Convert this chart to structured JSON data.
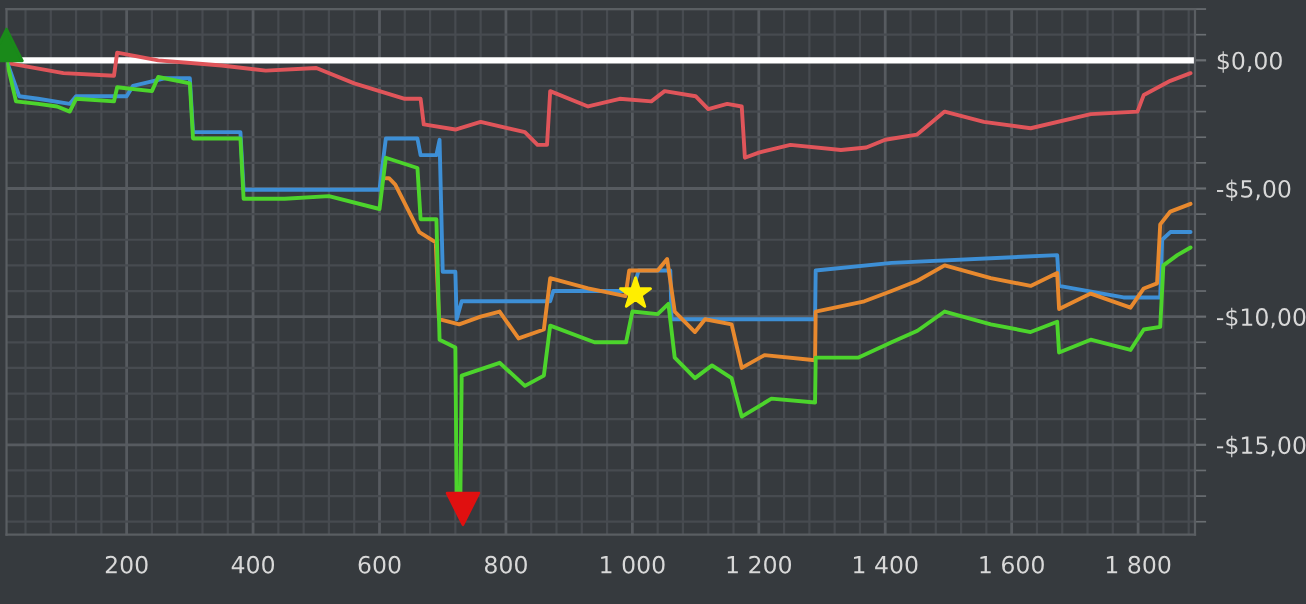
{
  "chart_data": {
    "type": "line",
    "xlim": [
      10,
      1890
    ],
    "ylim": [
      -18.5,
      2
    ],
    "xticks": [
      200,
      400,
      600,
      800,
      {
        "value": 1000,
        "label": "1 000"
      },
      {
        "value": 1200,
        "label": "1 200"
      },
      {
        "value": 1400,
        "label": "1 400"
      },
      {
        "value": 1600,
        "label": "1 600"
      },
      {
        "value": 1800,
        "label": "1 800"
      }
    ],
    "yticks": [
      {
        "value": 0,
        "label": "$0,00"
      },
      {
        "value": -5,
        "label": "-$5,00"
      },
      {
        "value": -10,
        "label": "-$10,00"
      },
      {
        "value": -15,
        "label": "-$15,00"
      }
    ],
    "grid": true,
    "legend": false,
    "line_style": "solid",
    "ref_lines": [
      {
        "axis": "y",
        "value": 0,
        "color": "#ffffff"
      }
    ],
    "series": [
      {
        "color": "#e0555a",
        "x": [
          10,
          100,
          180,
          185,
          250,
          350,
          420,
          500,
          560,
          640,
          665,
          670,
          720,
          760,
          830,
          850,
          865,
          870,
          930,
          980,
          1030,
          1051,
          1100,
          1120,
          1150,
          1173,
          1178,
          1200,
          1250,
          1330,
          1370,
          1400,
          1450,
          1494,
          1556,
          1630,
          1725,
          1799,
          1809,
          1851,
          1883
        ],
        "values": [
          -0.1,
          -0.5,
          -0.6,
          0.3,
          0.0,
          -0.2,
          -0.4,
          -0.3,
          -0.9,
          -1.5,
          -1.5,
          -2.5,
          -2.7,
          -2.4,
          -2.8,
          -3.3,
          -3.3,
          -1.2,
          -1.8,
          -1.5,
          -1.6,
          -1.2,
          -1.4,
          -1.9,
          -1.7,
          -1.8,
          -3.8,
          -3.6,
          -3.3,
          -3.5,
          -3.4,
          -3.1,
          -2.9,
          -2.0,
          -2.4,
          -2.65,
          -2.1,
          -2.0,
          -1.35,
          -0.8,
          -0.5
        ]
      },
      {
        "color": "#3d8fd6",
        "x": [
          10,
          30,
          60,
          110,
          120,
          200,
          210,
          260,
          300,
          305,
          380,
          385,
          600,
          610,
          660,
          665,
          690,
          695,
          700,
          720,
          722,
          730,
          870,
          875,
          1000,
          1010,
          1060,
          1062,
          1289,
          1290,
          1410,
          1672,
          1675,
          1777,
          1835,
          1838,
          1851,
          1883
        ],
        "values": [
          0.0,
          -1.4,
          -1.5,
          -1.7,
          -1.4,
          -1.4,
          -1.0,
          -0.7,
          -0.7,
          -2.8,
          -2.8,
          -5.05,
          -5.05,
          -3.05,
          -3.05,
          -3.7,
          -3.7,
          -3.1,
          -8.25,
          -8.25,
          -10.1,
          -9.4,
          -9.4,
          -9.0,
          -9.0,
          -8.2,
          -8.2,
          -10.1,
          -10.1,
          -8.2,
          -7.9,
          -7.6,
          -8.8,
          -9.25,
          -9.25,
          -7.0,
          -6.7,
          -6.7
        ]
      },
      {
        "color": "#e8892e",
        "x": [
          610,
          615,
          625,
          663,
          689,
          694,
          726,
          760,
          790,
          820,
          860,
          870,
          930,
          989,
          995,
          1040,
          1055,
          1067,
          1099,
          1115,
          1157,
          1173,
          1209,
          1289,
          1290,
          1367,
          1410,
          1451,
          1494,
          1567,
          1630,
          1672,
          1675,
          1725,
          1788,
          1809,
          1830,
          1835,
          1851,
          1883
        ],
        "values": [
          -4.6,
          -4.6,
          -4.85,
          -6.7,
          -7.1,
          -10.1,
          -10.3,
          -10.0,
          -9.8,
          -10.85,
          -10.5,
          -8.5,
          -8.9,
          -9.2,
          -8.2,
          -8.2,
          -7.75,
          -9.8,
          -10.6,
          -10.1,
          -10.3,
          -12.0,
          -11.5,
          -11.7,
          -9.8,
          -9.4,
          -9.0,
          -8.6,
          -8.0,
          -8.5,
          -8.8,
          -8.3,
          -9.7,
          -9.1,
          -9.65,
          -8.9,
          -8.7,
          -6.4,
          -5.9,
          -5.6
        ]
      },
      {
        "color": "#4cd42c",
        "x": [
          10,
          25,
          60,
          90,
          110,
          120,
          180,
          185,
          240,
          250,
          300,
          305,
          380,
          385,
          450,
          520,
          600,
          610,
          660,
          665,
          690,
          695,
          720,
          722,
          728,
          730,
          790,
          830,
          860,
          870,
          940,
          990,
          1000,
          1040,
          1057,
          1067,
          1099,
          1126,
          1157,
          1173,
          1220,
          1289,
          1290,
          1357,
          1410,
          1451,
          1494,
          1567,
          1630,
          1672,
          1675,
          1725,
          1788,
          1809,
          1835,
          1840,
          1862,
          1883
        ],
        "values": [
          0.0,
          -1.6,
          -1.7,
          -1.8,
          -2.0,
          -1.5,
          -1.6,
          -1.05,
          -1.2,
          -0.65,
          -0.9,
          -3.05,
          -3.05,
          -5.4,
          -5.4,
          -5.3,
          -5.8,
          -3.8,
          -4.2,
          -6.2,
          -6.2,
          -10.9,
          -11.2,
          -16.85,
          -16.85,
          -12.3,
          -11.8,
          -12.7,
          -12.3,
          -10.35,
          -11.0,
          -11.0,
          -9.8,
          -9.9,
          -9.5,
          -11.6,
          -12.4,
          -11.9,
          -12.4,
          -13.9,
          -13.2,
          -13.35,
          -11.6,
          -11.6,
          -11.0,
          -10.55,
          -9.8,
          -10.3,
          -10.6,
          -10.2,
          -11.4,
          -10.9,
          -11.3,
          -10.5,
          -10.4,
          -8.0,
          -7.6,
          -7.3
        ]
      },
      {
        "type": "scatter",
        "marker": "triangle",
        "color": "#1a8a1a",
        "x": [
          10
        ],
        "values": [
          0.6
        ]
      },
      {
        "type": "scatter",
        "marker": "triangle_down",
        "color": "#e01010",
        "x": [
          732
        ],
        "values": [
          -17.5
        ]
      },
      {
        "type": "scatter",
        "marker": "star",
        "color": "#ffee00",
        "x": [
          1005
        ],
        "values": [
          -9.1
        ]
      }
    ]
  }
}
